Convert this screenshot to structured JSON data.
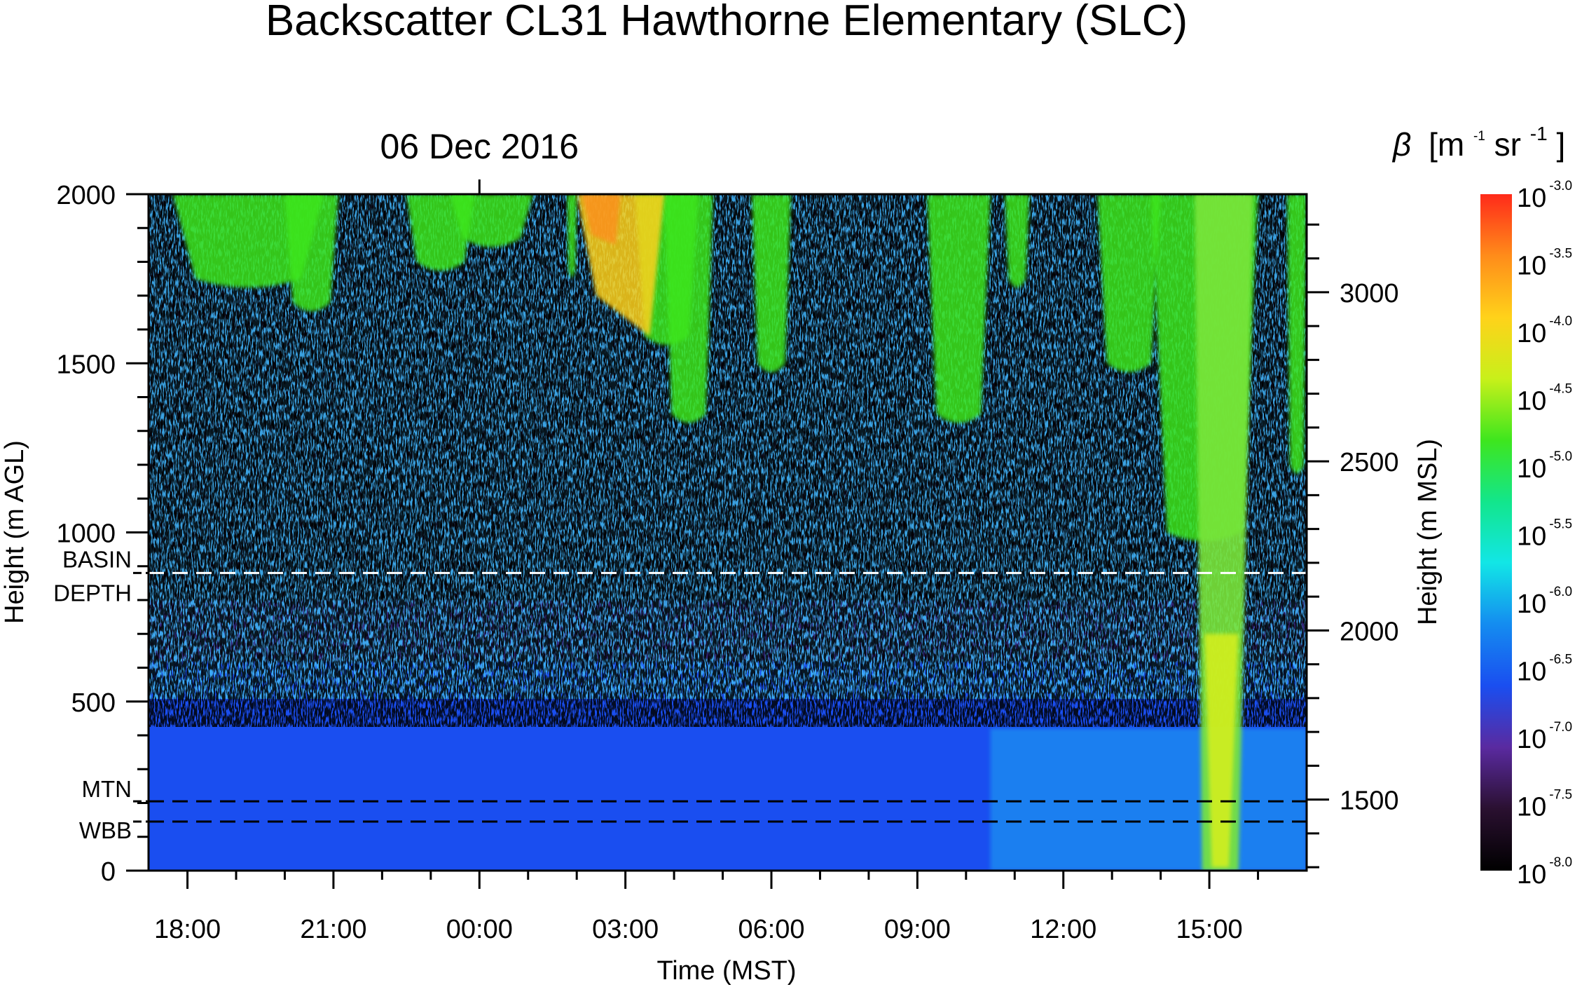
{
  "chart_data": {
    "type": "heatmap",
    "title": "Backscatter CL31 Hawthorne Elementary (SLC)",
    "date_label": "06 Dec 2016",
    "xlabel": "Time (MST)",
    "ylabel": "Height (m AGL)",
    "y2label": "Height (m MSL)",
    "x_range_hours": [
      17.2,
      41.0
    ],
    "x_ticks": [
      {
        "value": 18,
        "label": "18:00"
      },
      {
        "value": 21,
        "label": "21:00"
      },
      {
        "value": 24,
        "label": "00:00"
      },
      {
        "value": 27,
        "label": "03:00"
      },
      {
        "value": 30,
        "label": "06:00"
      },
      {
        "value": 33,
        "label": "09:00"
      },
      {
        "value": 36,
        "label": "12:00"
      },
      {
        "value": 39,
        "label": "15:00"
      }
    ],
    "date_tick_hour": 24,
    "ylim": [
      0,
      2000
    ],
    "y_ticks": [
      {
        "value": 0,
        "label": "0"
      },
      {
        "value": 500,
        "label": "500"
      },
      {
        "value": 1000,
        "label": "1000"
      },
      {
        "value": 1500,
        "label": "1500"
      },
      {
        "value": 2000,
        "label": "2000"
      }
    ],
    "y2lim": [
      1290,
      3290
    ],
    "y2_ticks": [
      {
        "value": 1500,
        "label": "1500"
      },
      {
        "value": 2000,
        "label": "2000"
      },
      {
        "value": 2500,
        "label": "2500"
      },
      {
        "value": 3000,
        "label": "3000"
      }
    ],
    "reference_lines": [
      {
        "value": 880,
        "color": "#ffffff",
        "labels": [
          "BASIN",
          "DEPTH"
        ]
      },
      {
        "value": 205,
        "color": "#000000",
        "labels": [
          "MTN"
        ]
      },
      {
        "value": 145,
        "color": "#000000",
        "labels": [
          "WBB"
        ]
      }
    ],
    "colorbar": {
      "title_symbol": "β",
      "title_unit_prefix": "[m",
      "title_exp1": "-1",
      "title_mid": " sr",
      "title_exp2": "-1",
      "title_suffix": "]",
      "base": "10",
      "exponents": [
        "-3.0",
        "-3.5",
        "-4.0",
        "-4.5",
        "-5.0",
        "-5.5",
        "-6.0",
        "-6.5",
        "-7.0",
        "-7.5",
        "-8.0"
      ],
      "range_log10": [
        -8.0,
        -3.0
      ],
      "colors_top_to_bottom": [
        "#ff2a1a",
        "#ff8c1a",
        "#ffd21a",
        "#c8f01a",
        "#3ee61e",
        "#12e68c",
        "#12e6e6",
        "#148cf0",
        "#1a4ef0",
        "#5a2aa0",
        "#2a1030",
        "#000000"
      ]
    },
    "field_description": {
      "near_surface_log10": -6.8,
      "aloft_log10": -7.8,
      "high_cloud_log10": -5.0
    }
  }
}
